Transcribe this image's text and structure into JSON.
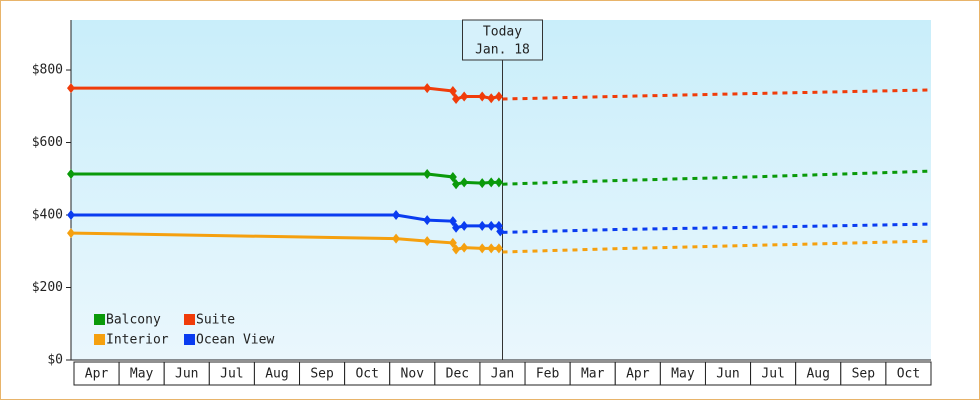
{
  "chart_data": {
    "type": "line",
    "categories": [
      "Apr",
      "May",
      "Jun",
      "Jul",
      "Aug",
      "Sep",
      "Oct",
      "Nov",
      "Dec",
      "Jan",
      "Feb",
      "Mar",
      "Apr",
      "May",
      "Jun",
      "Jul",
      "Aug",
      "Sep",
      "Oct"
    ],
    "xlim": [
      0,
      19
    ],
    "ylim": [
      0,
      938
    ],
    "yticks": [
      {
        "value": 0,
        "label": "$0"
      },
      {
        "value": 200,
        "label": "$200"
      },
      {
        "value": 400,
        "label": "$400"
      },
      {
        "value": 600,
        "label": "$600"
      },
      {
        "value": 800,
        "label": "$800"
      }
    ],
    "annotation": {
      "x": 9.5,
      "lines": [
        "Today",
        "Jan. 18"
      ]
    },
    "legend_position": "lower-left",
    "series": [
      {
        "name": "Balcony",
        "color": "#0a9a0a",
        "x": [
          0,
          7.83,
          8.4,
          8.47,
          8.65,
          9.05,
          9.25,
          9.42
        ],
        "values": [
          513,
          513,
          505,
          485,
          490,
          488,
          490,
          490
        ],
        "forecast": {
          "x": [
            9.5,
            12,
            15,
            19
          ],
          "values": [
            485,
            495,
            505,
            521
          ]
        }
      },
      {
        "name": "Suite",
        "color": "#f03c0a",
        "x": [
          0,
          7.83,
          8.4,
          8.47,
          8.65,
          9.05,
          9.25,
          9.42
        ],
        "values": [
          750,
          750,
          742,
          720,
          727,
          727,
          722,
          727
        ],
        "forecast": {
          "x": [
            9.5,
            12,
            15,
            19
          ],
          "values": [
            720,
            727,
            735,
            745
          ]
        }
      },
      {
        "name": "Interior",
        "color": "#f5a00f",
        "x": [
          0,
          7.14,
          7.83,
          8.4,
          8.47,
          8.65,
          9.05,
          9.25,
          9.42
        ],
        "values": [
          350,
          335,
          328,
          323,
          305,
          310,
          308,
          308,
          308
        ],
        "forecast": {
          "x": [
            9.5,
            12,
            15,
            19
          ],
          "values": [
            298,
            307,
            316,
            328
          ]
        }
      },
      {
        "name": "Ocean View",
        "color": "#0a3cf0",
        "x": [
          0,
          7.14,
          7.83,
          8.4,
          8.47,
          8.65,
          9.05,
          9.25,
          9.42,
          9.45
        ],
        "values": [
          400,
          400,
          386,
          383,
          365,
          370,
          370,
          370,
          370,
          355
        ],
        "forecast": {
          "x": [
            9.5,
            12,
            15,
            19
          ],
          "values": [
            352,
            360,
            366,
            375
          ]
        }
      }
    ]
  }
}
